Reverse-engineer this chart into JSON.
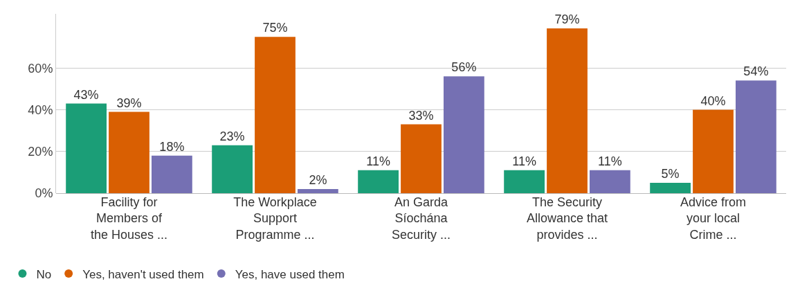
{
  "chart_data": {
    "type": "bar",
    "categories": [
      "Facility for\nMembers of\nthe Houses ...",
      "The Workplace\nSupport\nProgramme ...",
      "An Garda\nSíochána\nSecurity ...",
      "The Security\nAllowance that\nprovides ...",
      "Advice from\nyour local\nCrime ..."
    ],
    "series": [
      {
        "name": "No",
        "color": "#1b9e77",
        "values": [
          43,
          23,
          11,
          11,
          5
        ],
        "value_labels": [
          "43%",
          "23%",
          "11%",
          "11%",
          "5%"
        ]
      },
      {
        "name": "Yes, haven't used them",
        "color": "#d95f02",
        "values": [
          39,
          75,
          33,
          79,
          40
        ],
        "value_labels": [
          "39%",
          "75%",
          "33%",
          "79%",
          "40%"
        ]
      },
      {
        "name": "Yes, have used them",
        "color": "#7570b3",
        "values": [
          18,
          2,
          56,
          11,
          54
        ],
        "value_labels": [
          "18%",
          "2%",
          "56%",
          "11%",
          "54%"
        ]
      }
    ],
    "ylim": [
      0,
      86
    ],
    "yticks": [
      {
        "value": 0,
        "label": "0%"
      },
      {
        "value": 20,
        "label": "20%"
      },
      {
        "value": 40,
        "label": "40%"
      },
      {
        "value": 60,
        "label": "60%"
      }
    ],
    "grid": "y",
    "legend": "bottom left",
    "marker": "circle"
  }
}
